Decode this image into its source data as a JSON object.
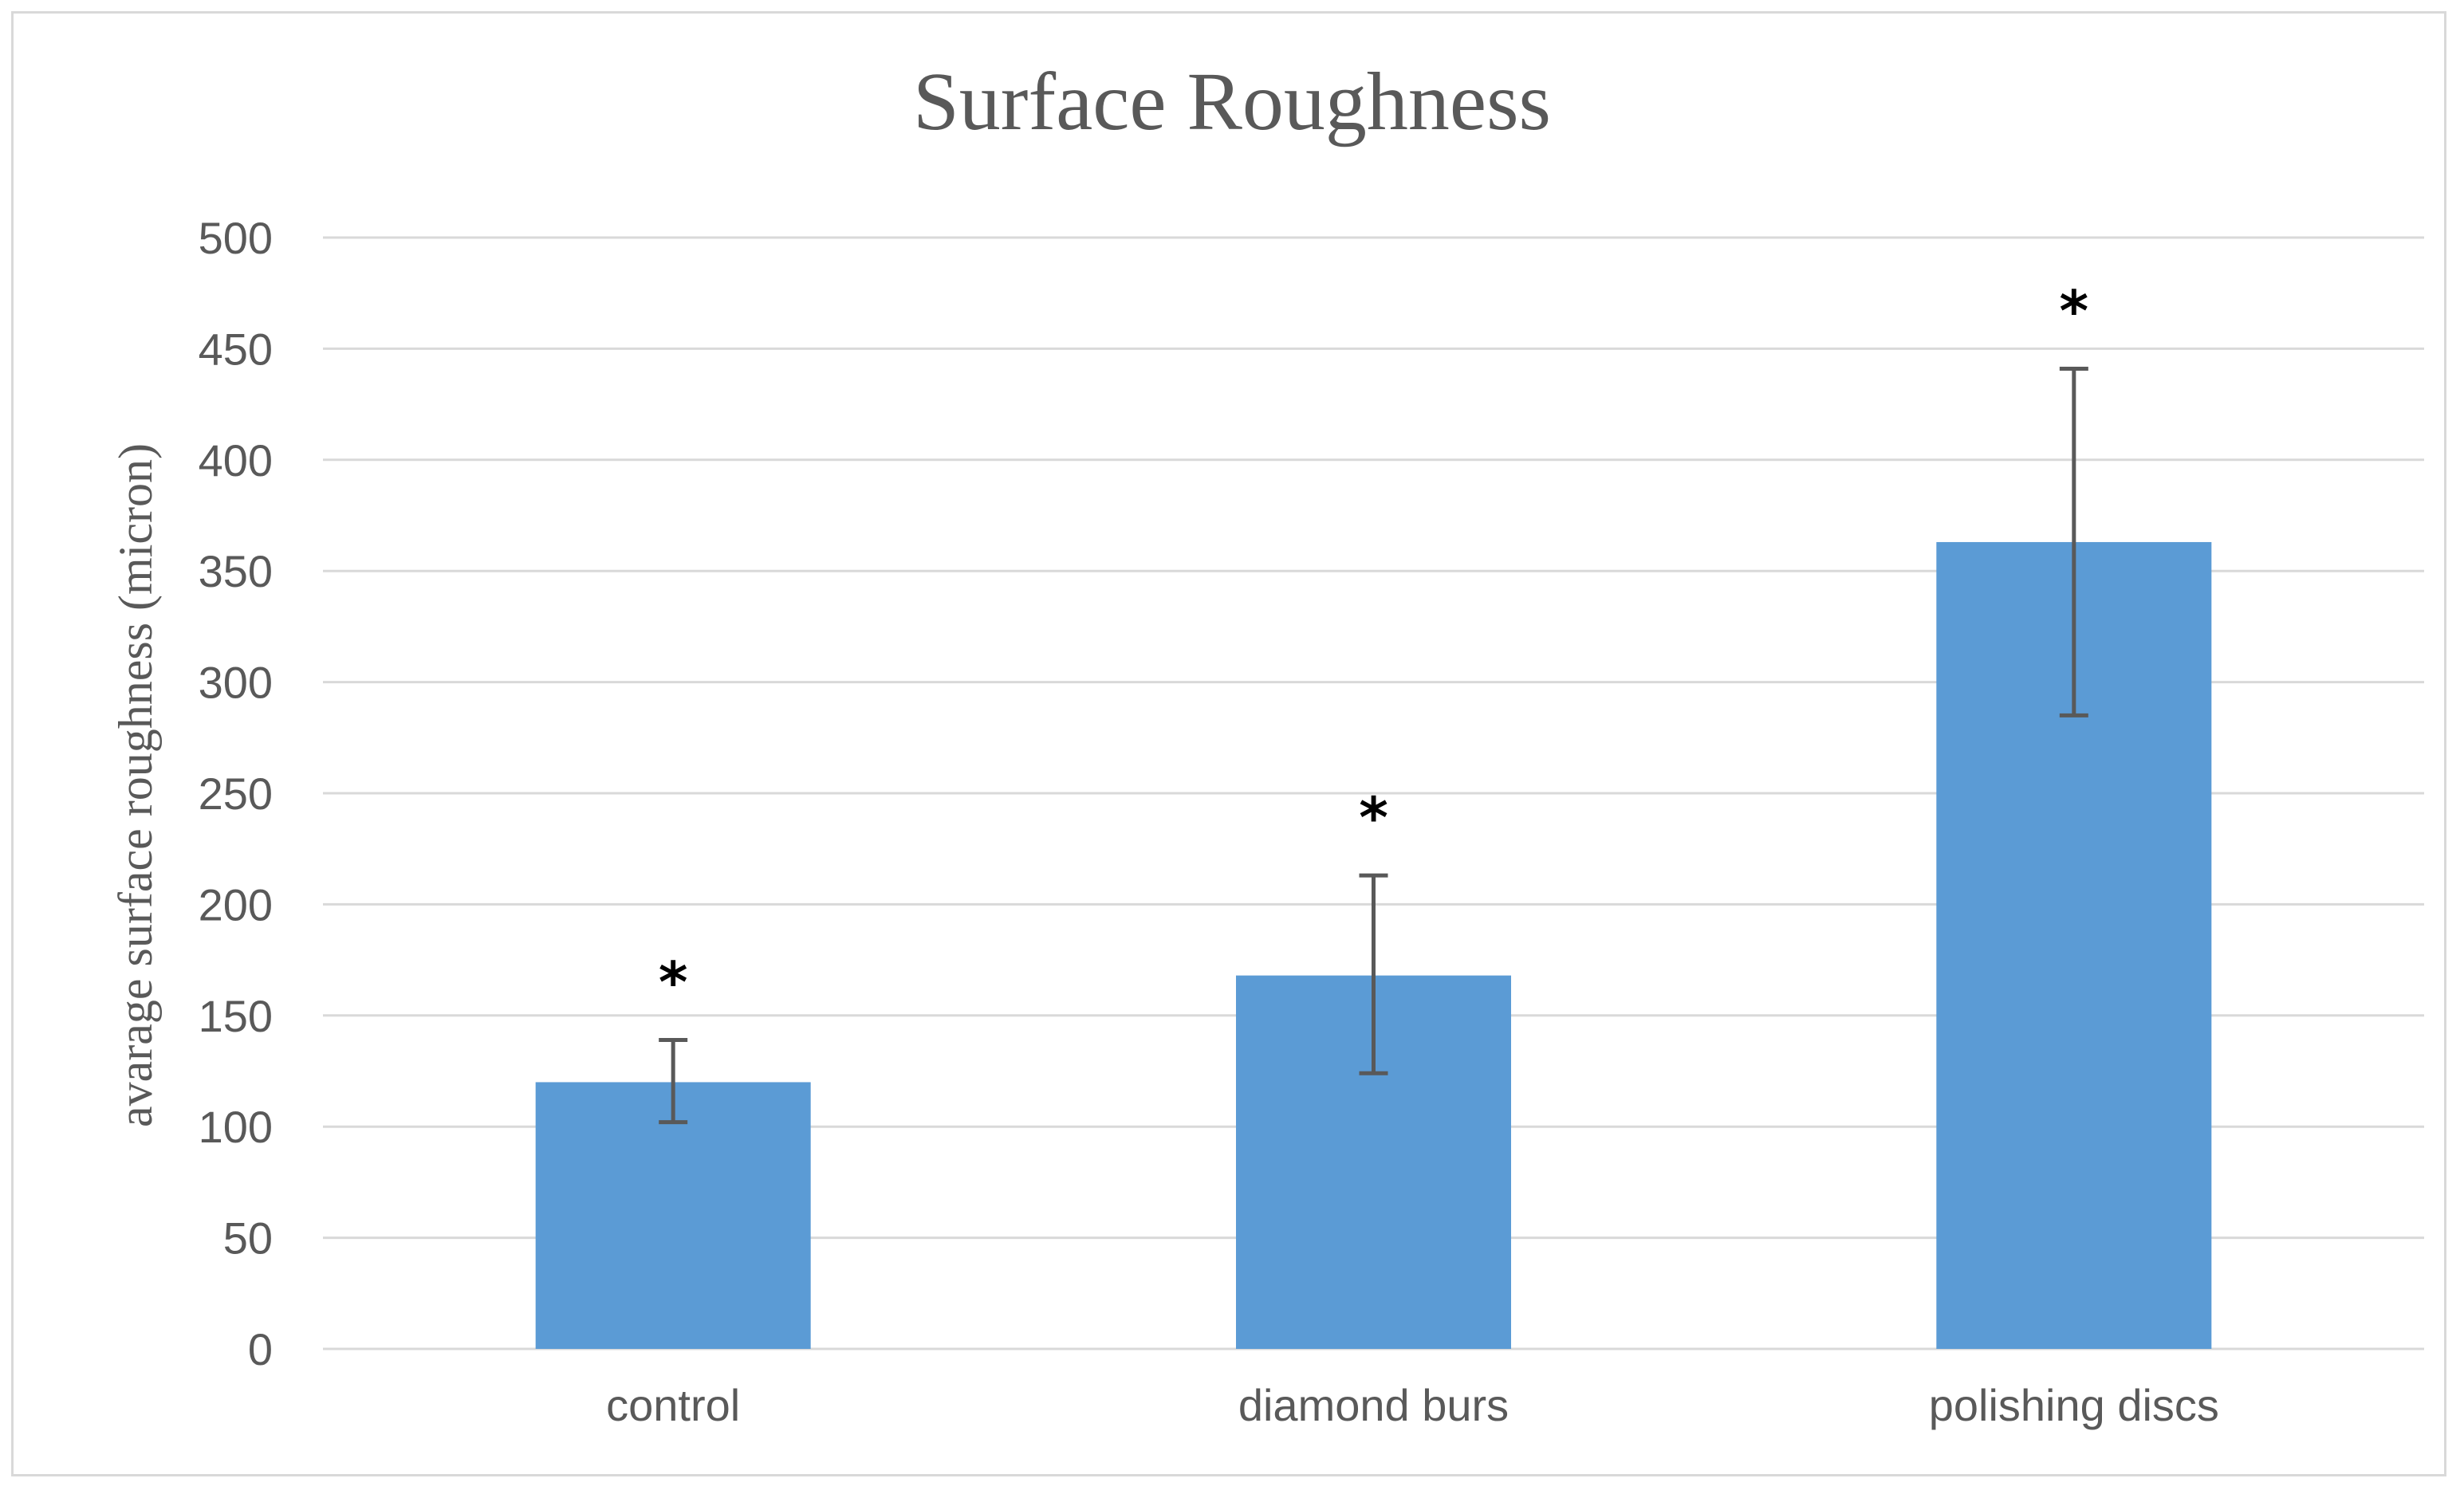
{
  "chart_data": {
    "type": "bar",
    "title": "Surface Roughness",
    "xlabel": "",
    "ylabel": "avarage surface roughness (micron)",
    "categories": [
      "control",
      "diamond burs",
      "polishing discs"
    ],
    "values": [
      120,
      168,
      363
    ],
    "error_bars": {
      "upper": [
        139,
        213,
        441
      ],
      "lower": [
        102,
        124,
        285
      ]
    },
    "annotations": [
      "*",
      "*",
      "*"
    ],
    "ylim": [
      0,
      500
    ],
    "yticks": [
      0,
      50,
      100,
      150,
      200,
      250,
      300,
      350,
      400,
      450,
      500
    ],
    "grid": true,
    "legend": "none",
    "bar_color": "#5b9bd5",
    "gridline_color": "#d9d9d9",
    "errorbar_color": "#595959"
  }
}
